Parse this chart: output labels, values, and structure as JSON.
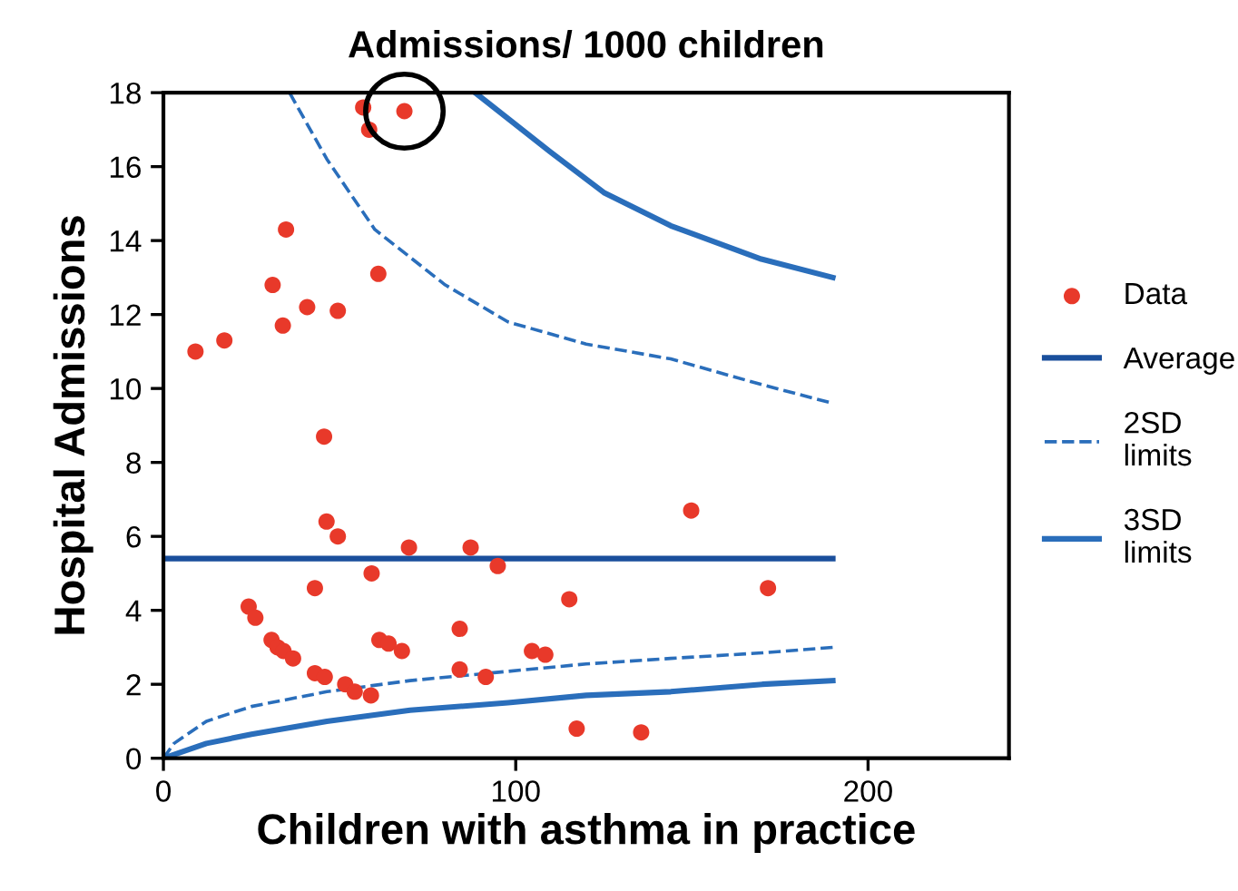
{
  "chart_data": {
    "type": "scatter",
    "title": "Admissions/ 1000 children",
    "xlabel": "Children with asthma in practice",
    "ylabel": "Hospital Admissions",
    "xlim": [
      0,
      240
    ],
    "xticks": [
      0,
      100,
      200
    ],
    "ylim": [
      0,
      18
    ],
    "yticks": [
      0,
      2,
      4,
      6,
      8,
      10,
      12,
      14,
      16,
      18
    ],
    "grid": false,
    "legend": "right",
    "series": [
      {
        "name": "Data",
        "color": "#e8392a",
        "marker": "circle",
        "x": [
          56.7,
          68.4,
          58.4,
          34.8,
          61,
          31,
          40.8,
          33.9,
          49.5,
          17.3,
          9.1,
          45.6,
          46.3,
          49.5,
          69.7,
          87.2,
          94.9,
          59.1,
          43,
          24.2,
          26.1,
          30.7,
          32.4,
          34.1,
          36.8,
          61.3,
          63.9,
          67.7,
          84.1,
          43,
          45.8,
          51.6,
          54.3,
          58.9,
          84.1,
          91.5,
          149.8,
          171.6,
          115.2,
          104.6,
          108.4,
          117.3,
          135.6
        ],
        "values": [
          17.6,
          17.5,
          17.0,
          14.3,
          13.1,
          12.8,
          12.2,
          11.7,
          12.1,
          11.3,
          11.0,
          8.7,
          6.4,
          6.0,
          5.7,
          5.7,
          5.2,
          5.0,
          4.6,
          4.1,
          3.8,
          3.2,
          3.0,
          2.9,
          2.7,
          3.2,
          3.1,
          2.9,
          3.5,
          2.3,
          2.2,
          2.0,
          1.8,
          1.7,
          2.4,
          2.2,
          6.7,
          4.6,
          4.3,
          2.9,
          2.8,
          0.8,
          0.7
        ]
      },
      {
        "name": "Average",
        "type": "line",
        "color": "#1a4f9c",
        "line_style": "solid",
        "x": [
          0,
          190
        ],
        "values": [
          5.4,
          5.4
        ]
      },
      {
        "name": "2SD limits",
        "type": "line",
        "color": "#2a6ebb",
        "line_style": "dashed",
        "x": [
          35.8,
          46.4,
          60,
          80,
          97.8,
          120,
          144,
          170,
          190
        ],
        "values": [
          18,
          16.2,
          14.3,
          12.8,
          11.8,
          11.2,
          10.8,
          10.1,
          9.6
        ]
      },
      {
        "type": "line",
        "color": "#2a6ebb",
        "line_style": "dashed",
        "x": [
          0,
          3,
          12.2,
          25,
          46.4,
          70,
          97.8,
          120,
          144,
          170,
          190
        ],
        "values": [
          0,
          0.4,
          1.0,
          1.4,
          1.8,
          2.1,
          2.35,
          2.55,
          2.7,
          2.85,
          3.0
        ]
      },
      {
        "name": "3SD limits",
        "type": "line",
        "color": "#2a6ebb",
        "line_style": "solid",
        "x": [
          88.5,
          109.8,
          125,
          144,
          169.7,
          190
        ],
        "values": [
          18,
          16.4,
          15.3,
          14.4,
          13.5,
          13.0
        ]
      },
      {
        "type": "line",
        "color": "#2a6ebb",
        "line_style": "solid",
        "x": [
          0,
          12.2,
          25,
          46.4,
          70,
          97.8,
          120,
          144,
          170,
          190
        ],
        "values": [
          0,
          0.4,
          0.65,
          1.0,
          1.3,
          1.5,
          1.7,
          1.8,
          2.0,
          2.1
        ]
      }
    ]
  }
}
